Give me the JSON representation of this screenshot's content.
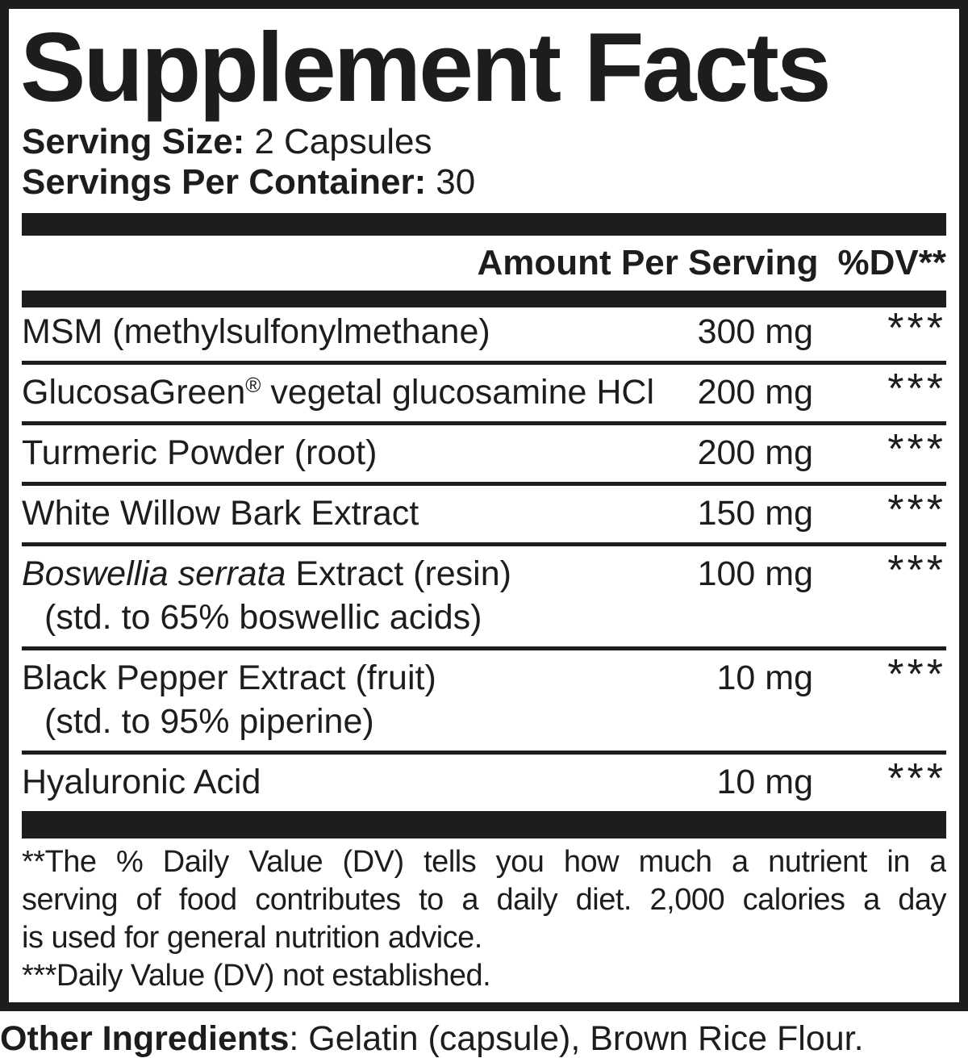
{
  "label": {
    "title": "Supplement Facts",
    "serving_size": {
      "label": "Serving Size:",
      "value": "2 Capsules"
    },
    "servings_per_container": {
      "label": "Servings Per Container:",
      "value": "30"
    },
    "columns": {
      "amount": "Amount Per Serving",
      "dv": "%DV**"
    },
    "rows": [
      {
        "parts": [
          {
            "t": "MSM (methylsulfonylmethane)"
          }
        ],
        "line2": null,
        "amount": "300 mg",
        "dv": "***"
      },
      {
        "parts": [
          {
            "t": "GlucosaGreen"
          },
          {
            "t": "®",
            "sup": true
          },
          {
            "t": " vegetal glucosamine HCl"
          }
        ],
        "line2": null,
        "amount": "200 mg",
        "dv": "***"
      },
      {
        "parts": [
          {
            "t": "Turmeric Powder (root)"
          }
        ],
        "line2": null,
        "amount": "200 mg",
        "dv": "***"
      },
      {
        "parts": [
          {
            "t": "White Willow Bark Extract"
          }
        ],
        "line2": null,
        "amount": "150 mg",
        "dv": "***"
      },
      {
        "parts": [
          {
            "t": "Boswellia serrata",
            "i": true
          },
          {
            "t": " Extract (resin)"
          }
        ],
        "line2": "(std. to 65% boswellic acids)",
        "amount": "100 mg",
        "dv": "***"
      },
      {
        "parts": [
          {
            "t": "Black Pepper Extract (fruit)"
          }
        ],
        "line2": "(std. to 95% piperine)",
        "amount": "10 mg",
        "dv": "***"
      },
      {
        "parts": [
          {
            "t": "Hyaluronic Acid"
          }
        ],
        "line2": null,
        "amount": "10 mg",
        "dv": "***"
      }
    ],
    "footnote_lines": [
      "**The % Daily Value (DV) tells you how much a nutrient in a",
      "serving of food contributes to a daily diet. 2,000 calories a day",
      "is used for general nutrition advice."
    ],
    "dv_not_established": "***Daily Value (DV) not established.",
    "other_ingredients": {
      "label": "Other Ingredients",
      "value": ": Gelatin (capsule), Brown Rice Flour."
    },
    "colors": {
      "ink": "#1d1d1b",
      "background": "#ffffff"
    }
  }
}
